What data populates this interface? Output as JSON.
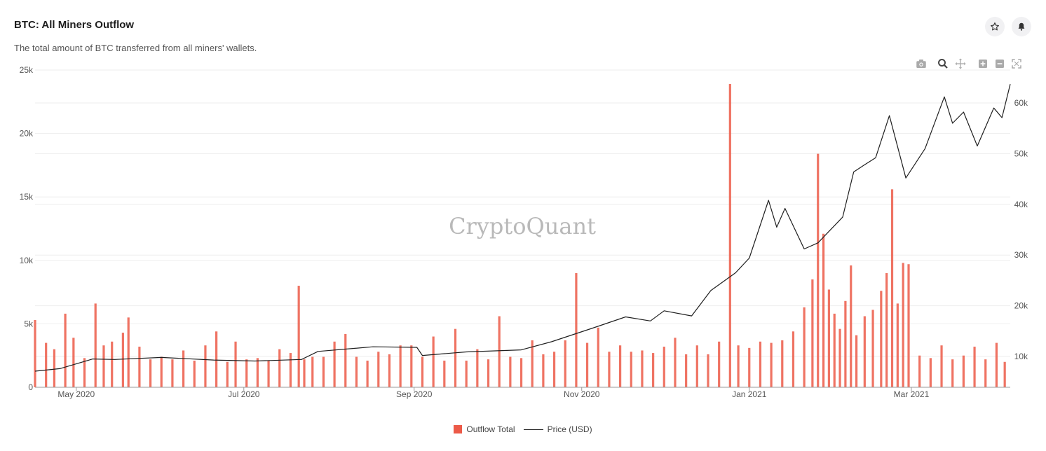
{
  "header": {
    "title": "BTC: All Miners Outflow",
    "subtitle": "The total amount of BTC transferred from all miners' wallets."
  },
  "icons": {
    "star": "star-icon",
    "bell": "bell-icon",
    "toolbar": [
      "camera-icon",
      "zoom-icon",
      "pan-icon",
      "zoom-in-icon",
      "zoom-out-icon",
      "autoscale-icon"
    ]
  },
  "watermark": "CryptoQuant",
  "colors": {
    "bar": "#ec5a48",
    "line": "#1f1f1f",
    "grid": "#eeeeee",
    "axis_text": "#555555"
  },
  "legend": {
    "outflow_label": "Outflow Total",
    "price_label": "Price (USD)"
  },
  "chart_data": {
    "type": "bar",
    "x_range": [
      "2020-04-16",
      "2021-04-06"
    ],
    "x_ticks": [
      {
        "date": "2020-05-01",
        "label": "May 2020"
      },
      {
        "date": "2020-07-01",
        "label": "Jul 2020"
      },
      {
        "date": "2020-09-01",
        "label": "Sep 2020"
      },
      {
        "date": "2020-11-01",
        "label": "Nov 2020"
      },
      {
        "date": "2021-01-01",
        "label": "Jan 2021"
      },
      {
        "date": "2021-03-01",
        "label": "Mar 2021"
      }
    ],
    "y_left": {
      "ylim": [
        0,
        25000
      ],
      "ticks": [
        {
          "v": 0,
          "label": "0"
        },
        {
          "v": 5000,
          "label": "5k"
        },
        {
          "v": 10000,
          "label": "10k"
        },
        {
          "v": 15000,
          "label": "15k"
        },
        {
          "v": 20000,
          "label": "20k"
        },
        {
          "v": 25000,
          "label": "25k"
        }
      ]
    },
    "y_right": {
      "ylim": [
        3000,
        66000
      ],
      "ticks": [
        {
          "v": 10000,
          "label": "10k"
        },
        {
          "v": 20000,
          "label": "20k"
        },
        {
          "v": 30000,
          "label": "30k"
        },
        {
          "v": 40000,
          "label": "40k"
        },
        {
          "v": 50000,
          "label": "50k"
        },
        {
          "v": 60000,
          "label": "60k"
        }
      ]
    },
    "series": [
      {
        "name": "Outflow Total",
        "type": "bar",
        "axis": "left",
        "points": [
          [
            "2020-04-16",
            5300
          ],
          [
            "2020-04-20",
            3500
          ],
          [
            "2020-04-23",
            3000
          ],
          [
            "2020-04-27",
            5800
          ],
          [
            "2020-04-30",
            3900
          ],
          [
            "2020-05-04",
            2300
          ],
          [
            "2020-05-08",
            6600
          ],
          [
            "2020-05-11",
            3300
          ],
          [
            "2020-05-14",
            3600
          ],
          [
            "2020-05-18",
            4300
          ],
          [
            "2020-05-20",
            5500
          ],
          [
            "2020-05-24",
            3200
          ],
          [
            "2020-05-28",
            2200
          ],
          [
            "2020-06-01",
            2400
          ],
          [
            "2020-06-05",
            2200
          ],
          [
            "2020-06-09",
            2900
          ],
          [
            "2020-06-13",
            2100
          ],
          [
            "2020-06-17",
            3300
          ],
          [
            "2020-06-21",
            4400
          ],
          [
            "2020-06-25",
            2000
          ],
          [
            "2020-06-28",
            3600
          ],
          [
            "2020-07-02",
            2200
          ],
          [
            "2020-07-06",
            2300
          ],
          [
            "2020-07-10",
            2100
          ],
          [
            "2020-07-14",
            3000
          ],
          [
            "2020-07-18",
            2700
          ],
          [
            "2020-07-21",
            8000
          ],
          [
            "2020-07-23",
            2200
          ],
          [
            "2020-07-26",
            2400
          ],
          [
            "2020-07-30",
            2400
          ],
          [
            "2020-08-03",
            3600
          ],
          [
            "2020-08-07",
            4200
          ],
          [
            "2020-08-11",
            2400
          ],
          [
            "2020-08-15",
            2100
          ],
          [
            "2020-08-19",
            2800
          ],
          [
            "2020-08-23",
            2600
          ],
          [
            "2020-08-27",
            3300
          ],
          [
            "2020-08-31",
            3300
          ],
          [
            "2020-09-04",
            2400
          ],
          [
            "2020-09-08",
            4000
          ],
          [
            "2020-09-12",
            2100
          ],
          [
            "2020-09-16",
            4600
          ],
          [
            "2020-09-20",
            2100
          ],
          [
            "2020-09-24",
            3000
          ],
          [
            "2020-09-28",
            2200
          ],
          [
            "2020-10-02",
            5600
          ],
          [
            "2020-10-06",
            2400
          ],
          [
            "2020-10-10",
            2300
          ],
          [
            "2020-10-14",
            3700
          ],
          [
            "2020-10-18",
            2600
          ],
          [
            "2020-10-22",
            2800
          ],
          [
            "2020-10-26",
            3700
          ],
          [
            "2020-10-30",
            9000
          ],
          [
            "2020-11-03",
            3500
          ],
          [
            "2020-11-07",
            4700
          ],
          [
            "2020-11-11",
            2800
          ],
          [
            "2020-11-15",
            3300
          ],
          [
            "2020-11-19",
            2800
          ],
          [
            "2020-11-23",
            2900
          ],
          [
            "2020-11-27",
            2700
          ],
          [
            "2020-12-01",
            3200
          ],
          [
            "2020-12-05",
            3900
          ],
          [
            "2020-12-09",
            2600
          ],
          [
            "2020-12-13",
            3300
          ],
          [
            "2020-12-17",
            2600
          ],
          [
            "2020-12-21",
            3600
          ],
          [
            "2020-12-25",
            23900
          ],
          [
            "2020-12-28",
            3300
          ],
          [
            "2021-01-01",
            3100
          ],
          [
            "2021-01-05",
            3600
          ],
          [
            "2021-01-09",
            3500
          ],
          [
            "2021-01-13",
            3700
          ],
          [
            "2021-01-17",
            4400
          ],
          [
            "2021-01-21",
            6300
          ],
          [
            "2021-01-24",
            8500
          ],
          [
            "2021-01-26",
            18400
          ],
          [
            "2021-01-28",
            12100
          ],
          [
            "2021-01-30",
            7700
          ],
          [
            "2021-02-01",
            5800
          ],
          [
            "2021-02-03",
            4600
          ],
          [
            "2021-02-05",
            6800
          ],
          [
            "2021-02-07",
            9600
          ],
          [
            "2021-02-09",
            4100
          ],
          [
            "2021-02-12",
            5600
          ],
          [
            "2021-02-15",
            6100
          ],
          [
            "2021-02-18",
            7600
          ],
          [
            "2021-02-20",
            9000
          ],
          [
            "2021-02-22",
            15600
          ],
          [
            "2021-02-24",
            6600
          ],
          [
            "2021-02-26",
            9800
          ],
          [
            "2021-02-28",
            9700
          ],
          [
            "2021-03-04",
            2500
          ],
          [
            "2021-03-08",
            2300
          ],
          [
            "2021-03-12",
            3300
          ],
          [
            "2021-03-16",
            2200
          ],
          [
            "2021-03-20",
            2500
          ],
          [
            "2021-03-24",
            3200
          ],
          [
            "2021-03-28",
            2200
          ],
          [
            "2021-04-01",
            3500
          ],
          [
            "2021-04-04",
            2000
          ]
        ]
      },
      {
        "name": "Price (USD)",
        "type": "line",
        "axis": "right",
        "points": [
          [
            "2020-04-16",
            7100
          ],
          [
            "2020-04-25",
            7600
          ],
          [
            "2020-05-07",
            9500
          ],
          [
            "2020-05-15",
            9400
          ],
          [
            "2020-06-01",
            9800
          ],
          [
            "2020-06-20",
            9300
          ],
          [
            "2020-07-05",
            9100
          ],
          [
            "2020-07-22",
            9400
          ],
          [
            "2020-07-28",
            11000
          ],
          [
            "2020-08-17",
            11900
          ],
          [
            "2020-09-02",
            11800
          ],
          [
            "2020-09-04",
            10200
          ],
          [
            "2020-09-20",
            10900
          ],
          [
            "2020-10-10",
            11300
          ],
          [
            "2020-10-21",
            12900
          ],
          [
            "2020-11-05",
            15600
          ],
          [
            "2020-11-17",
            17800
          ],
          [
            "2020-11-26",
            17000
          ],
          [
            "2020-12-01",
            19000
          ],
          [
            "2020-12-11",
            18000
          ],
          [
            "2020-12-18",
            23000
          ],
          [
            "2020-12-27",
            26500
          ],
          [
            "2021-01-01",
            29400
          ],
          [
            "2021-01-08",
            40800
          ],
          [
            "2021-01-11",
            35500
          ],
          [
            "2021-01-14",
            39200
          ],
          [
            "2021-01-21",
            31200
          ],
          [
            "2021-01-26",
            32400
          ],
          [
            "2021-02-04",
            37500
          ],
          [
            "2021-02-08",
            46400
          ],
          [
            "2021-02-12",
            47800
          ],
          [
            "2021-02-16",
            49200
          ],
          [
            "2021-02-21",
            57500
          ],
          [
            "2021-02-27",
            45200
          ],
          [
            "2021-03-06",
            51000
          ],
          [
            "2021-03-13",
            61200
          ],
          [
            "2021-03-16",
            56000
          ],
          [
            "2021-03-20",
            58200
          ],
          [
            "2021-03-25",
            51500
          ],
          [
            "2021-03-31",
            59000
          ],
          [
            "2021-04-03",
            57100
          ],
          [
            "2021-04-06",
            63700
          ]
        ]
      }
    ]
  }
}
